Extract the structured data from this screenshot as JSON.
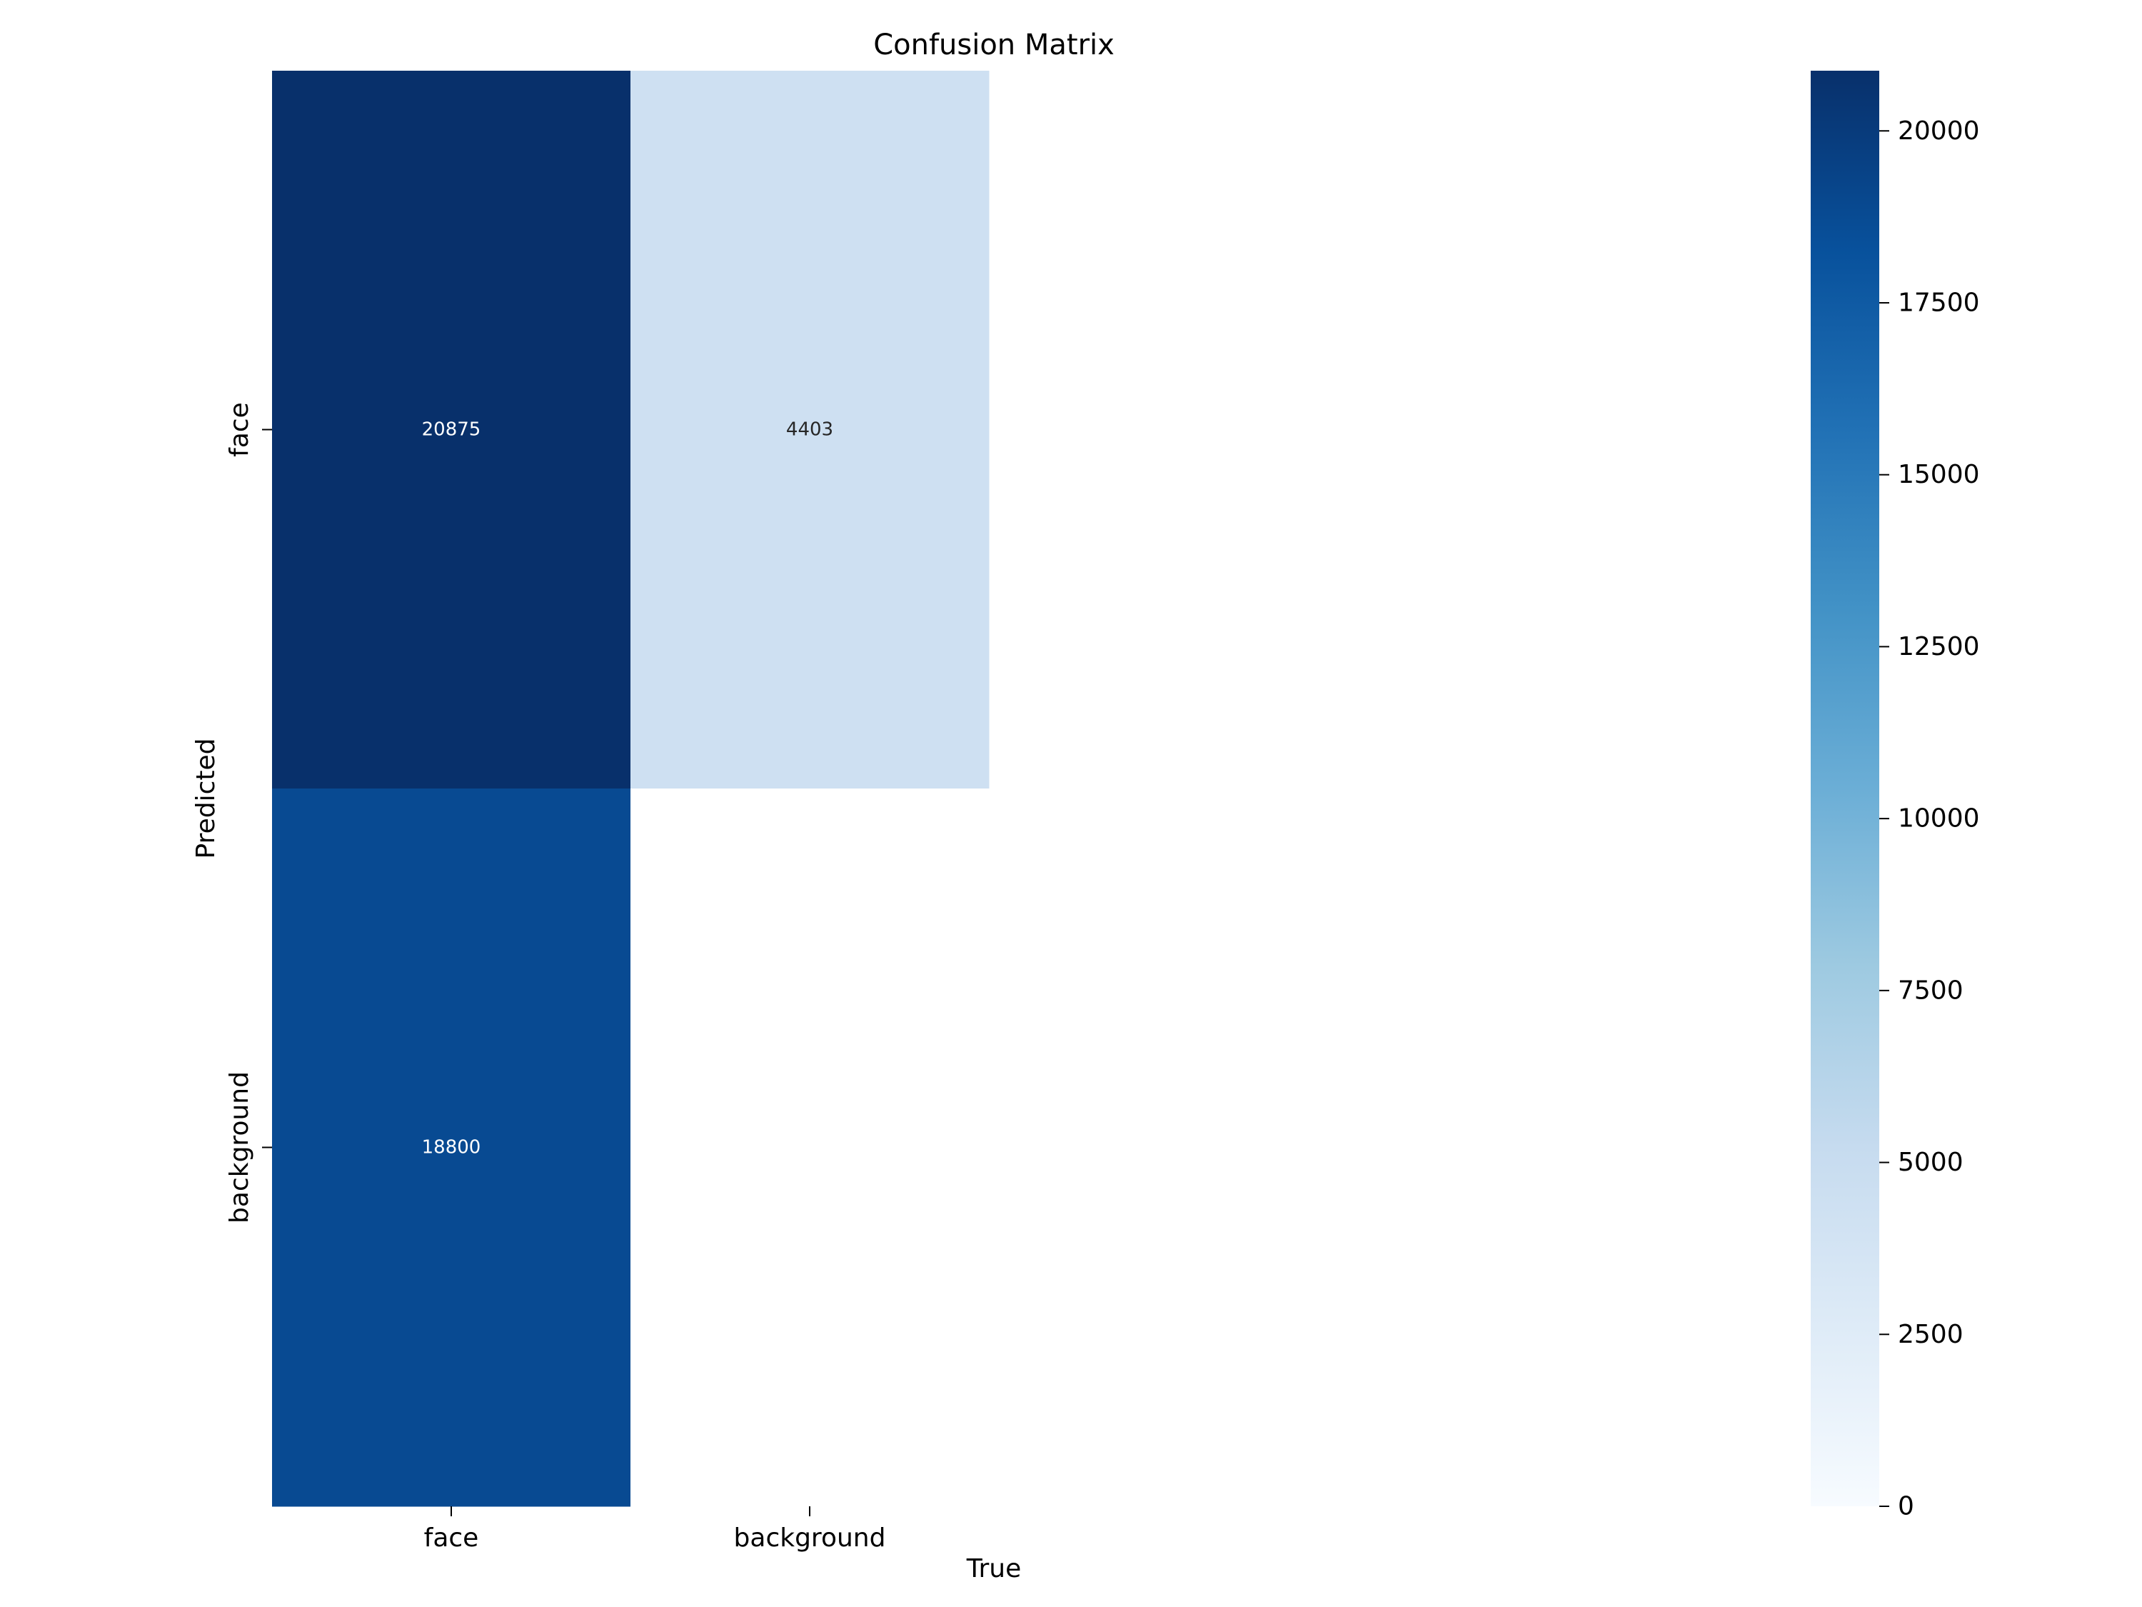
{
  "chart_data": {
    "type": "heatmap",
    "title": "Confusion Matrix",
    "xlabel": "True",
    "ylabel": "Predicted",
    "x_categories": [
      "face",
      "background"
    ],
    "y_categories": [
      "face",
      "background"
    ],
    "values": [
      [
        20875,
        4403
      ],
      [
        18800,
        null
      ]
    ],
    "cell_labels": [
      [
        "20875",
        "4403"
      ],
      [
        "18800",
        ""
      ]
    ],
    "colormap": "Blues",
    "vmin": 0,
    "vmax": 20875,
    "colorbar_ticks": [
      0,
      2500,
      5000,
      7500,
      10000,
      12500,
      15000,
      17500,
      20000
    ],
    "colorbar_tick_labels": [
      "0",
      "2500",
      "5000",
      "7500",
      "10000",
      "12500",
      "15000",
      "17500",
      "20000"
    ],
    "colors": {
      "cmap_stops": [
        "#f7fbff",
        "#deebf7",
        "#c6dbef",
        "#9ecae1",
        "#6baed6",
        "#4292c6",
        "#2171b5",
        "#08519c",
        "#08306b"
      ],
      "empty_cell": "#ffffff",
      "dark_text": "#262626",
      "light_text": "#ffffff"
    }
  }
}
